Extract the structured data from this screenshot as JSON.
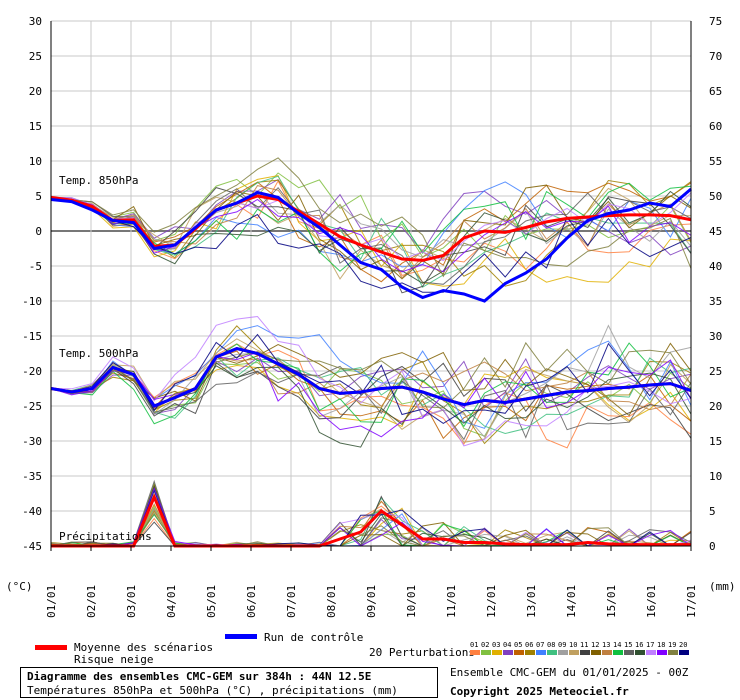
{
  "chart_data": {
    "type": "line",
    "title": "Diagramme des ensembles CMC-GEM sur 384h : 44N 12.5E",
    "subtitle": "Températures 850hPa et 500hPa (°C) , précipitations (mm)",
    "left_unit": "(°C)",
    "right_unit": "(mm)",
    "left_ticks": [
      30,
      25,
      20,
      15,
      10,
      5,
      0,
      -5,
      -10,
      -15,
      -20,
      -25,
      -30,
      -35,
      -40,
      -45
    ],
    "right_ticks": [
      75,
      70,
      65,
      60,
      55,
      50,
      45,
      40,
      35,
      30,
      25,
      20,
      15,
      10,
      5,
      0
    ],
    "left_ylim": [
      -45,
      30
    ],
    "right_ylim": [
      0,
      75
    ],
    "x_labels": [
      "01/01",
      "02/01",
      "03/01",
      "04/01",
      "05/01",
      "06/01",
      "07/01",
      "08/01",
      "09/01",
      "10/01",
      "11/01",
      "12/01",
      "13/01",
      "14/01",
      "15/01",
      "16/01",
      "17/01"
    ],
    "panel_labels": {
      "t850": "Temp. 850hPa",
      "t500": "Temp. 500hPa",
      "precip": "Précipitations"
    },
    "series": [
      {
        "name": "Moyenne des scénarios",
        "color": "#ff0000",
        "t850": [
          4.8,
          4.4,
          3.5,
          1.5,
          1.6,
          -2.2,
          -2.0,
          0.3,
          3.0,
          4.0,
          5.0,
          4.5,
          2.8,
          1.0,
          -0.8,
          -2.0,
          -3.0,
          -4.0,
          -4.2,
          -3.5,
          -1.0,
          0.0,
          -0.2,
          0.5,
          1.3,
          1.8,
          2.0,
          2.2,
          2.3,
          2.3,
          2.2,
          1.6
        ],
        "t500": [
          -22.5,
          -23.0,
          -22.5,
          -19.5,
          -20.5,
          -25.0,
          -23.8,
          -22.5,
          -18.0,
          -16.8,
          -17.5,
          -19.0,
          -20.5,
          -22.5,
          -23.2,
          -23.0,
          -22.5,
          -22.3,
          -23.0,
          -24.0,
          -24.8,
          -24.2,
          -24.5,
          -24.0,
          -23.5,
          -23.0,
          -22.8,
          -22.5,
          -22.3,
          -22.0,
          -21.8,
          -22.8
        ],
        "precip": [
          0,
          0,
          0,
          0,
          0,
          7,
          0,
          0,
          0,
          0,
          0,
          0,
          0,
          0,
          1,
          2,
          5,
          3,
          1,
          1,
          0.5,
          0.5,
          0.3,
          0.2,
          0.2,
          0.2,
          0.5,
          0.3,
          0.2,
          0.2,
          0.2,
          0.2
        ]
      },
      {
        "name": "Run de contrôle",
        "color": "#0000ff",
        "t850": [
          4.5,
          4.2,
          3.0,
          1.5,
          1.2,
          -2.5,
          -2.0,
          0.5,
          3.0,
          4.0,
          5.5,
          4.8,
          2.5,
          0.5,
          -2.0,
          -4.5,
          -5.5,
          -8.0,
          -9.5,
          -8.5,
          -9.0,
          -10.0,
          -7.5,
          -6.0,
          -4.0,
          -1.0,
          1.5,
          2.5,
          3.0,
          4.0,
          3.5,
          6.0
        ],
        "t500": [
          -22.5,
          -23.0,
          -22.5,
          -19.5,
          -20.5,
          -25.0,
          -23.8,
          -22.5,
          -18.0,
          -16.8,
          -17.5,
          -19.0,
          -20.5,
          -22.5,
          -23.2,
          -23.0,
          -22.5,
          -22.3,
          -23.0,
          -24.0,
          -24.8,
          -24.2,
          -24.5,
          -24.0,
          -23.5,
          -23.0,
          -22.8,
          -22.5,
          -22.3,
          -22.0,
          -21.8,
          -22.8
        ],
        "precip": [
          0,
          0,
          0,
          0,
          0,
          5,
          0,
          0,
          0,
          0,
          0,
          0,
          0,
          0,
          0,
          0,
          3,
          1,
          0,
          0,
          0,
          0,
          0,
          0,
          0,
          0,
          0,
          0,
          0,
          0,
          0,
          0
        ]
      }
    ],
    "legend": {
      "mean": "Moyenne des scénarios",
      "control": "Run de contrôle",
      "snow": "Risque neige",
      "perturbations": "20 Perturbations",
      "perturbation_numbers": [
        "01",
        "02",
        "03",
        "04",
        "05",
        "06",
        "07",
        "08",
        "09",
        "10",
        "11",
        "12",
        "13",
        "14",
        "15",
        "16",
        "17",
        "18",
        "19",
        "20"
      ],
      "perturbation_colors": [
        "#ff8040",
        "#80c040",
        "#e0b000",
        "#8040c0",
        "#c06000",
        "#a08000",
        "#4080ff",
        "#40c080",
        "#a0a0a0",
        "#c0a060",
        "#404040",
        "#806000",
        "#c08040",
        "#10c040",
        "#606060",
        "#305030",
        "#c080ff",
        "#8000ff",
        "#808040",
        "#000080"
      ]
    },
    "grid": true
  },
  "footer": {
    "ensemble_info": "Ensemble CMC-GEM du 01/01/2025 - 00Z",
    "copyright": "Copyright 2025 Meteociel.fr"
  }
}
